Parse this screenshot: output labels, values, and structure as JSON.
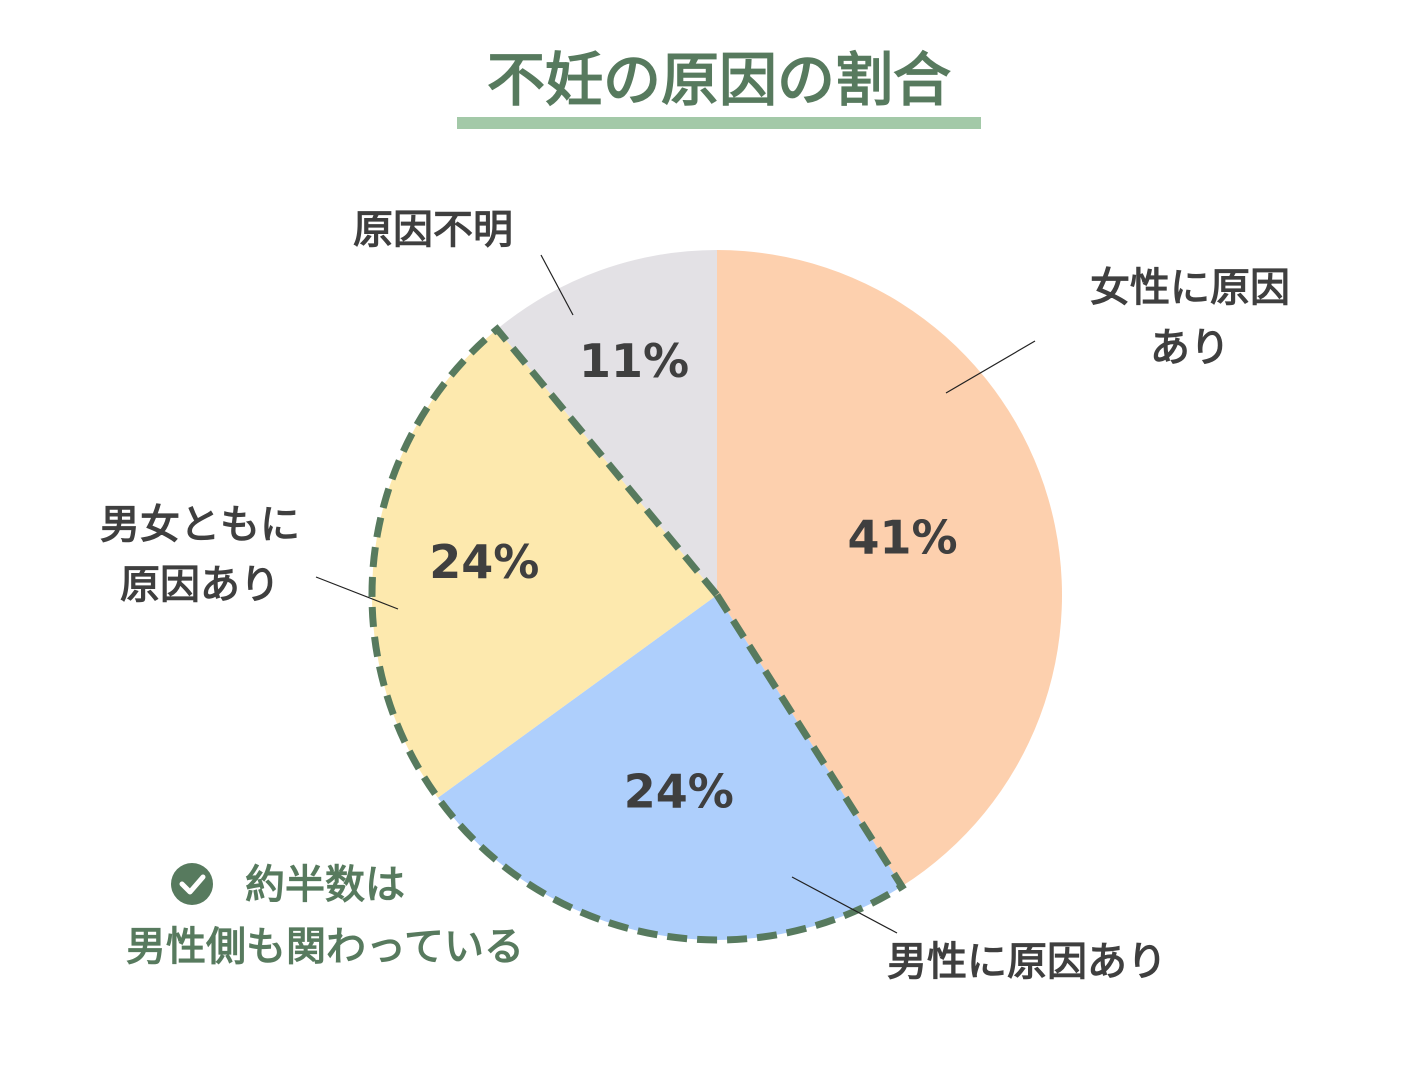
{
  "chart_data": {
    "type": "pie",
    "title": "不妊の原因の割合",
    "categories": [
      "女性に原因あり",
      "男性に原因あり",
      "男女ともに\n原因あり",
      "原因不明"
    ],
    "values": [
      41,
      24,
      24,
      11
    ],
    "value_labels": [
      "41%",
      "24%",
      "24%",
      "11%"
    ],
    "colors": [
      "#fdd0ae",
      "#aecffc",
      "#fde9ae",
      "#e3e1e5"
    ],
    "highlight": [
      1,
      2
    ],
    "annotation": "約半数は\n男性側も関わっている"
  }
}
